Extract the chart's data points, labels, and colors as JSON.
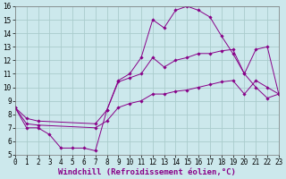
{
  "xlabel": "Windchill (Refroidissement éolien,°C)",
  "xlim": [
    0,
    23
  ],
  "ylim": [
    5,
    16
  ],
  "xticks": [
    0,
    1,
    2,
    3,
    4,
    5,
    6,
    7,
    8,
    9,
    10,
    11,
    12,
    13,
    14,
    15,
    16,
    17,
    18,
    19,
    20,
    21,
    22,
    23
  ],
  "yticks": [
    5,
    6,
    7,
    8,
    9,
    10,
    11,
    12,
    13,
    14,
    15,
    16
  ],
  "bg_color": "#cce8ec",
  "grid_color": "#aacccc",
  "line_color": "#880088",
  "series1_x": [
    0,
    1,
    2,
    3,
    4,
    5,
    6,
    7,
    8,
    9,
    10,
    11,
    12,
    13,
    14,
    15,
    16,
    17,
    18,
    19,
    20,
    21,
    22,
    23
  ],
  "series1_y": [
    8.5,
    7.0,
    7.0,
    6.5,
    5.5,
    5.5,
    5.5,
    5.3,
    8.3,
    10.5,
    11.0,
    12.2,
    15.0,
    14.4,
    15.7,
    16.0,
    15.7,
    15.2,
    13.8,
    12.5,
    11.0,
    10.0,
    9.2,
    9.5
  ],
  "series2_x": [
    0,
    1,
    2,
    7,
    8,
    9,
    10,
    11,
    12,
    13,
    14,
    15,
    16,
    17,
    18,
    19,
    20,
    21,
    22,
    23
  ],
  "series2_y": [
    8.5,
    7.7,
    7.5,
    7.3,
    8.3,
    10.4,
    10.7,
    11.0,
    12.2,
    11.5,
    12.0,
    12.2,
    12.5,
    12.5,
    12.7,
    12.8,
    11.0,
    12.8,
    13.0,
    9.5
  ],
  "series3_x": [
    0,
    1,
    2,
    7,
    8,
    9,
    10,
    11,
    12,
    13,
    14,
    15,
    16,
    17,
    18,
    19,
    20,
    21,
    22,
    23
  ],
  "series3_y": [
    8.5,
    7.3,
    7.2,
    7.0,
    7.5,
    8.5,
    8.8,
    9.0,
    9.5,
    9.5,
    9.7,
    9.8,
    10.0,
    10.2,
    10.4,
    10.5,
    9.5,
    10.5,
    10.0,
    9.5
  ],
  "tick_fontsize": 5.5,
  "label_fontsize": 6.5
}
